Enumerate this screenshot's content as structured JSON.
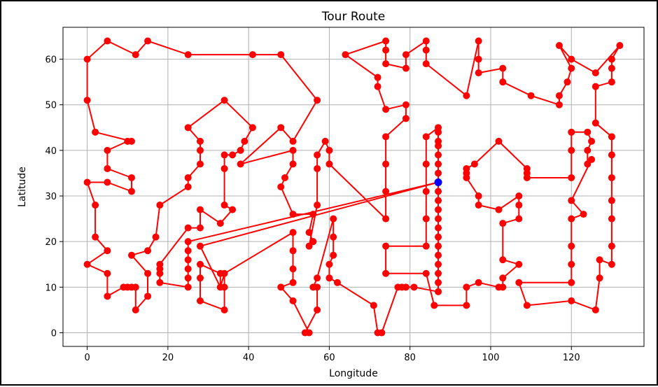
{
  "chart_data": {
    "type": "line",
    "title": "Tour Route",
    "xlabel": "Longitude",
    "ylabel": "Latitude",
    "xlim": [
      -6,
      138
    ],
    "ylim": [
      -3,
      67
    ],
    "xticks": [
      0,
      20,
      40,
      60,
      80,
      100,
      120
    ],
    "yticks": [
      0,
      10,
      20,
      30,
      40,
      50,
      60
    ],
    "grid": true,
    "colors": {
      "route": "#ff0000",
      "start": "#0000ff",
      "grid": "#b0b0b0"
    },
    "start_point": [
      87,
      33
    ],
    "route": [
      [
        87,
        33
      ],
      [
        25,
        20
      ],
      [
        25,
        18
      ],
      [
        25,
        16
      ],
      [
        25,
        14
      ],
      [
        25,
        12
      ],
      [
        25,
        10
      ],
      [
        18,
        11
      ],
      [
        18,
        13
      ],
      [
        18,
        14
      ],
      [
        18,
        15
      ],
      [
        25,
        23
      ],
      [
        28,
        23
      ],
      [
        28,
        27
      ],
      [
        33,
        24
      ],
      [
        36,
        27
      ],
      [
        34,
        28
      ],
      [
        34,
        36
      ],
      [
        34,
        39
      ],
      [
        36,
        39
      ],
      [
        38,
        40
      ],
      [
        39,
        42
      ],
      [
        41,
        45
      ],
      [
        34,
        51
      ],
      [
        25,
        45
      ],
      [
        28,
        42
      ],
      [
        28,
        40
      ],
      [
        28,
        37
      ],
      [
        25,
        34
      ],
      [
        25,
        32
      ],
      [
        18,
        28
      ],
      [
        17,
        21
      ],
      [
        15,
        18
      ],
      [
        11,
        17
      ],
      [
        15,
        13
      ],
      [
        15,
        8
      ],
      [
        12,
        5
      ],
      [
        12,
        10
      ],
      [
        11,
        10
      ],
      [
        10,
        10
      ],
      [
        9,
        10
      ],
      [
        5,
        8
      ],
      [
        5,
        13
      ],
      [
        0,
        15
      ],
      [
        5,
        18
      ],
      [
        2,
        21
      ],
      [
        2,
        28
      ],
      [
        0,
        33
      ],
      [
        5,
        33
      ],
      [
        11,
        31
      ],
      [
        11,
        34
      ],
      [
        5,
        36
      ],
      [
        5,
        40
      ],
      [
        10,
        42
      ],
      [
        11,
        42
      ],
      [
        2,
        44
      ],
      [
        0,
        51
      ],
      [
        0,
        60
      ],
      [
        5,
        64
      ],
      [
        12,
        61
      ],
      [
        15,
        64
      ],
      [
        25,
        61
      ],
      [
        41,
        61
      ],
      [
        48,
        61
      ],
      [
        57,
        51
      ],
      [
        51,
        42
      ],
      [
        48,
        45
      ],
      [
        38,
        37
      ],
      [
        51,
        40
      ],
      [
        51,
        37
      ],
      [
        49,
        34
      ],
      [
        48,
        32
      ],
      [
        51,
        26
      ],
      [
        56,
        26
      ],
      [
        55,
        22
      ],
      [
        56,
        20
      ],
      [
        55,
        19
      ],
      [
        57,
        28
      ],
      [
        57,
        36
      ],
      [
        57,
        39
      ],
      [
        59,
        42
      ],
      [
        60,
        40
      ],
      [
        60,
        37
      ],
      [
        74,
        25
      ],
      [
        74,
        31
      ],
      [
        74,
        37
      ],
      [
        74,
        43
      ],
      [
        79,
        47
      ],
      [
        79,
        50
      ],
      [
        74,
        49
      ],
      [
        72,
        54
      ],
      [
        72,
        56
      ],
      [
        64,
        61
      ],
      [
        74,
        64
      ],
      [
        74,
        62
      ],
      [
        74,
        59
      ],
      [
        79,
        58
      ],
      [
        79,
        61
      ],
      [
        84,
        64
      ],
      [
        84,
        62
      ],
      [
        84,
        59
      ],
      [
        94,
        52
      ],
      [
        97,
        64
      ],
      [
        97,
        60
      ],
      [
        97,
        57
      ],
      [
        103,
        58
      ],
      [
        103,
        55
      ],
      [
        110,
        52
      ],
      [
        117,
        50
      ],
      [
        117,
        52
      ],
      [
        119,
        55
      ],
      [
        120,
        58
      ],
      [
        117,
        63
      ],
      [
        120,
        60
      ],
      [
        126,
        57
      ],
      [
        132,
        63
      ],
      [
        130,
        60
      ],
      [
        130,
        58
      ],
      [
        130,
        55
      ],
      [
        126,
        54
      ],
      [
        126,
        46
      ],
      [
        130,
        43
      ],
      [
        130,
        39
      ],
      [
        130,
        34
      ],
      [
        130,
        29
      ],
      [
        130,
        25
      ],
      [
        130,
        19
      ],
      [
        130,
        15
      ],
      [
        127,
        16
      ],
      [
        127,
        12
      ],
      [
        126,
        5
      ],
      [
        120,
        7
      ],
      [
        109,
        6
      ],
      [
        107,
        11
      ],
      [
        120,
        11
      ],
      [
        120,
        15
      ],
      [
        120,
        19
      ],
      [
        120,
        25
      ],
      [
        123,
        26
      ],
      [
        120,
        29
      ],
      [
        125,
        38
      ],
      [
        124,
        37
      ],
      [
        124,
        40
      ],
      [
        125,
        42
      ],
      [
        124,
        44
      ],
      [
        120,
        44
      ],
      [
        120,
        40
      ],
      [
        120,
        34
      ],
      [
        109,
        34
      ],
      [
        109,
        35
      ],
      [
        109,
        36
      ],
      [
        102,
        42
      ],
      [
        96,
        37
      ],
      [
        94,
        36
      ],
      [
        94,
        35
      ],
      [
        94,
        34
      ],
      [
        97,
        30
      ],
      [
        97,
        28
      ],
      [
        102,
        27
      ],
      [
        107,
        30
      ],
      [
        107,
        28
      ],
      [
        107,
        25
      ],
      [
        103,
        24
      ],
      [
        103,
        16
      ],
      [
        107,
        15
      ],
      [
        103,
        12
      ],
      [
        103,
        10
      ],
      [
        102,
        10
      ],
      [
        97,
        11
      ],
      [
        94,
        10
      ],
      [
        94,
        6
      ],
      [
        86,
        6
      ],
      [
        84,
        13
      ],
      [
        74,
        13
      ],
      [
        74,
        19
      ],
      [
        84,
        19
      ],
      [
        84,
        25
      ],
      [
        84,
        31
      ],
      [
        84,
        37
      ],
      [
        84,
        43
      ],
      [
        87,
        45
      ],
      [
        87,
        44
      ],
      [
        87,
        42
      ],
      [
        87,
        41
      ],
      [
        87,
        39
      ],
      [
        87,
        37
      ],
      [
        87,
        35
      ],
      [
        87,
        33
      ],
      [
        87,
        31
      ],
      [
        87,
        29
      ],
      [
        87,
        27
      ],
      [
        87,
        25
      ],
      [
        87,
        23
      ],
      [
        87,
        21
      ],
      [
        87,
        19
      ],
      [
        87,
        17
      ],
      [
        87,
        15
      ],
      [
        87,
        13
      ],
      [
        87,
        11
      ],
      [
        87,
        9
      ],
      [
        81,
        10
      ],
      [
        79,
        10
      ],
      [
        78,
        10
      ],
      [
        77,
        10
      ],
      [
        73,
        0
      ],
      [
        72,
        0
      ],
      [
        71,
        6
      ],
      [
        62,
        11
      ],
      [
        60,
        12
      ],
      [
        60,
        15
      ],
      [
        61,
        17
      ],
      [
        61,
        21
      ],
      [
        61,
        25
      ],
      [
        57,
        12
      ],
      [
        56,
        10
      ],
      [
        57,
        10
      ],
      [
        57,
        5
      ],
      [
        54,
        0
      ],
      [
        55,
        0
      ],
      [
        51,
        7
      ],
      [
        48,
        10
      ],
      [
        51,
        11
      ],
      [
        51,
        14
      ],
      [
        51,
        18
      ],
      [
        51,
        22
      ],
      [
        34,
        13
      ],
      [
        34,
        10
      ],
      [
        34,
        5
      ],
      [
        28,
        7
      ],
      [
        28,
        12
      ],
      [
        28,
        15
      ],
      [
        33,
        13
      ],
      [
        33,
        10
      ],
      [
        34,
        13
      ],
      [
        33,
        10
      ],
      [
        28,
        19
      ],
      [
        87,
        33
      ]
    ]
  }
}
